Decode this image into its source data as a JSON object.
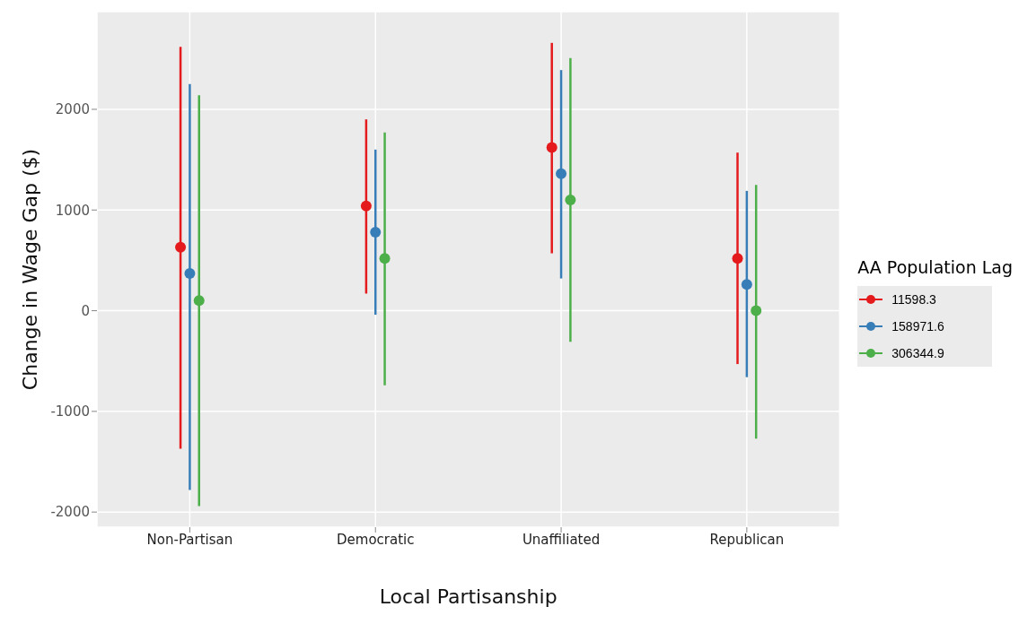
{
  "chart_data": {
    "type": "scatter",
    "xlabel": "Local Partisanship",
    "ylabel": "Change in Wage Gap  ($)",
    "legend_title": "AA Population Lag",
    "categories": [
      "Non-Partisan",
      "Democratic",
      "Unaffiliated",
      "Republican"
    ],
    "ylim": [
      -2150,
      2970
    ],
    "yticks": [
      -2000,
      -1000,
      0,
      1000,
      2000
    ],
    "grid": true,
    "legend": "right",
    "marker": "circle",
    "series": [
      {
        "name": "11598.3",
        "color": "#e41a1c",
        "values": [
          630,
          1040,
          1620,
          520
        ],
        "errors": [
          [
            -1370,
            2620
          ],
          [
            170,
            1900
          ],
          [
            570,
            2660
          ],
          [
            -530,
            1570
          ]
        ]
      },
      {
        "name": "158971.6",
        "color": "#377eb8",
        "values": [
          370,
          780,
          1360,
          260
        ],
        "errors": [
          [
            -1780,
            2250
          ],
          [
            -40,
            1600
          ],
          [
            320,
            2390
          ],
          [
            -660,
            1190
          ]
        ]
      },
      {
        "name": "306344.9",
        "color": "#4daf4a",
        "values": [
          100,
          520,
          1100,
          0
        ],
        "errors": [
          [
            -1940,
            2140
          ],
          [
            -740,
            1770
          ],
          [
            -310,
            2510
          ],
          [
            -1270,
            1250
          ]
        ]
      }
    ]
  }
}
